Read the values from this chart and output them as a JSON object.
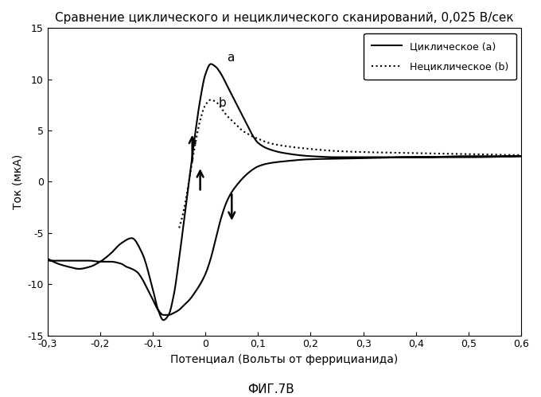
{
  "title": "Сравнение циклического и нециклического сканирований, 0,025 В/сек",
  "xlabel": "Потенциал (Вольты от феррицианида)",
  "ylabel": "Ток (мкА)",
  "figcaption": "ФИГ.7В",
  "xlim": [
    -0.3,
    0.6
  ],
  "ylim": [
    -15,
    15
  ],
  "xticks": [
    -0.3,
    -0.2,
    -0.1,
    0.0,
    0.1,
    0.2,
    0.3,
    0.4,
    0.5,
    0.6
  ],
  "yticks": [
    -15,
    -10,
    -5,
    0,
    5,
    10,
    15
  ],
  "legend_cyclic": "Циклическое (a)",
  "legend_noncyclic": "Нециклическое (b)",
  "label_a": "a",
  "label_b": "b",
  "background_color": "#ffffff",
  "line_color": "#000000",
  "title_fontsize": 11,
  "label_fontsize": 10,
  "tick_fontsize": 9,
  "cyclic_fwd_x": [
    -0.3,
    -0.28,
    -0.26,
    -0.24,
    -0.22,
    -0.2,
    -0.18,
    -0.16,
    -0.14,
    -0.12,
    -0.1,
    -0.09,
    -0.08,
    -0.07,
    -0.06,
    -0.05,
    -0.04,
    -0.03,
    -0.02,
    -0.01,
    0.0,
    0.01,
    0.02,
    0.03,
    0.04,
    0.05,
    0.06,
    0.07,
    0.08,
    0.09,
    0.1,
    0.12,
    0.15,
    0.2,
    0.25,
    0.3,
    0.4,
    0.5,
    0.6
  ],
  "cyclic_fwd_y": [
    -7.5,
    -8.0,
    -8.3,
    -8.5,
    -8.3,
    -7.8,
    -7.0,
    -6.0,
    -5.5,
    -7.0,
    -10.5,
    -12.5,
    -13.5,
    -13.0,
    -11.0,
    -7.5,
    -3.5,
    0.5,
    4.5,
    8.0,
    10.5,
    11.5,
    11.2,
    10.5,
    9.5,
    8.5,
    7.5,
    6.5,
    5.5,
    4.5,
    3.8,
    3.2,
    2.8,
    2.5,
    2.4,
    2.4,
    2.4,
    2.5,
    2.5
  ],
  "cyclic_ret_x": [
    0.6,
    0.5,
    0.4,
    0.3,
    0.2,
    0.15,
    0.12,
    0.1,
    0.09,
    0.08,
    0.07,
    0.06,
    0.05,
    0.04,
    0.03,
    0.02,
    0.01,
    0.0,
    -0.01,
    -0.02,
    -0.03,
    -0.04,
    -0.05,
    -0.06,
    -0.07,
    -0.08,
    -0.09,
    -0.1,
    -0.11,
    -0.12,
    -0.13,
    -0.14,
    -0.15,
    -0.16,
    -0.18,
    -0.2,
    -0.22,
    -0.24,
    -0.26,
    -0.28,
    -0.3
  ],
  "cyclic_ret_y": [
    2.5,
    2.4,
    2.4,
    2.3,
    2.2,
    2.0,
    1.8,
    1.5,
    1.2,
    0.8,
    0.3,
    -0.3,
    -1.0,
    -2.0,
    -3.5,
    -5.5,
    -7.5,
    -9.0,
    -10.0,
    -10.8,
    -11.5,
    -12.0,
    -12.5,
    -12.8,
    -13.0,
    -13.0,
    -12.5,
    -11.5,
    -10.5,
    -9.5,
    -8.8,
    -8.5,
    -8.3,
    -8.0,
    -7.8,
    -7.8,
    -7.7,
    -7.7,
    -7.7,
    -7.7,
    -7.7
  ],
  "nc_x": [
    -0.05,
    -0.04,
    -0.03,
    -0.02,
    -0.01,
    0.0,
    0.01,
    0.02,
    0.03,
    0.04,
    0.05,
    0.06,
    0.07,
    0.08,
    0.09,
    0.1,
    0.12,
    0.15,
    0.2,
    0.25,
    0.3,
    0.4,
    0.5,
    0.6
  ],
  "nc_y": [
    -4.5,
    -2.5,
    0.5,
    3.5,
    6.0,
    7.5,
    8.0,
    7.8,
    7.2,
    6.5,
    6.0,
    5.5,
    5.0,
    4.7,
    4.4,
    4.2,
    3.8,
    3.5,
    3.2,
    3.0,
    2.9,
    2.8,
    2.7,
    2.6
  ]
}
